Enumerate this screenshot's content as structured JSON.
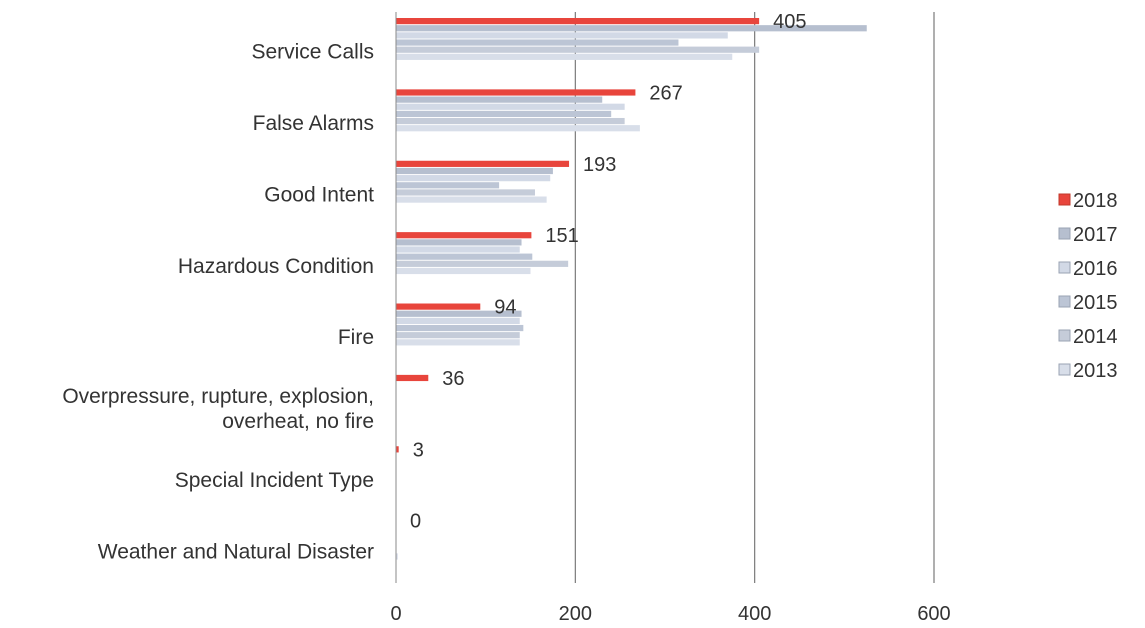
{
  "chart_data": {
    "type": "bar",
    "orientation": "horizontal",
    "title": "",
    "xlabel": "",
    "ylabel": "",
    "xlim": [
      0,
      600
    ],
    "x_ticks": [
      0,
      200,
      400,
      600
    ],
    "grid": "vertical",
    "legend_position": "right",
    "categories": [
      [
        "Service Calls"
      ],
      [
        "False Alarms"
      ],
      [
        "Good Intent"
      ],
      [
        "Hazardous Condition"
      ],
      [
        "Fire"
      ],
      [
        "Overpressure, rupture, explosion,",
        "overheat, no fire"
      ],
      [
        "Special Incident Type"
      ],
      [
        "Weather and Natural Disaster"
      ]
    ],
    "series": [
      {
        "name": "2018",
        "color": "#e8453c",
        "values": [
          405,
          267,
          193,
          151,
          94,
          36,
          3,
          0
        ],
        "show_labels": true
      },
      {
        "name": "2017",
        "color": "#b6bfcf",
        "values": [
          525,
          230,
          175,
          140,
          140,
          0,
          0,
          0
        ]
      },
      {
        "name": "2016",
        "color": "#d2d9e6",
        "values": [
          370,
          255,
          172,
          138,
          138,
          0,
          0,
          0
        ]
      },
      {
        "name": "2015",
        "color": "#bcc5d5",
        "values": [
          315,
          240,
          115,
          152,
          142,
          0,
          0,
          0
        ]
      },
      {
        "name": "2014",
        "color": "#c5ccd9",
        "values": [
          405,
          255,
          155,
          192,
          138,
          0,
          0,
          0
        ]
      },
      {
        "name": "2013",
        "color": "#d8dee9",
        "values": [
          375,
          272,
          168,
          150,
          138,
          0,
          0,
          2
        ]
      }
    ]
  }
}
